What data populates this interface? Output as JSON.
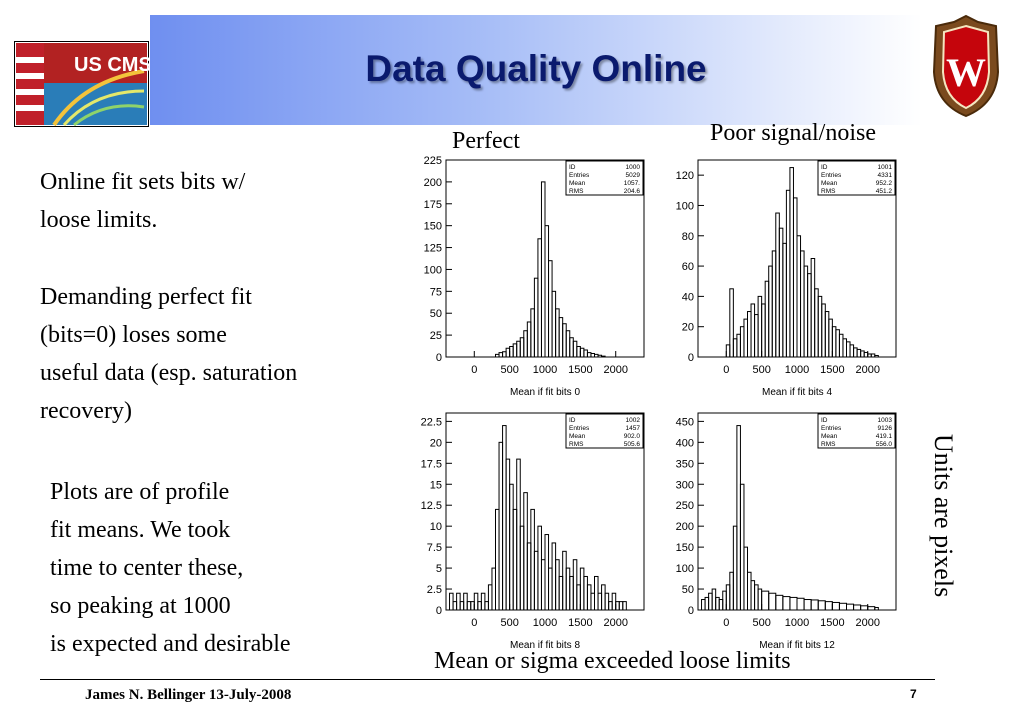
{
  "slide": {
    "title": "Data Quality Online",
    "page_number": "7",
    "footer": "James N. Bellinger 13-July-2008",
    "logo_left_text": "US CMS",
    "logo_right_letter": "W"
  },
  "labels": {
    "perfect": "Perfect",
    "poor": "Poor signal/noise",
    "exceeded": "Mean or sigma exceeded loose limits",
    "units": "Units are pixels"
  },
  "text_blocks": [
    {
      "lines": [
        "Online fit sets bits w/",
        "loose limits."
      ]
    },
    {
      "lines": [
        "Demanding perfect fit",
        "(bits=0) loses some",
        "useful data (esp. saturation",
        "recovery)"
      ]
    },
    {
      "lines": [
        "Plots are of profile",
        "fit means.  We took",
        "time to center these,",
        "so peaking at 1000",
        "is expected and desirable"
      ]
    }
  ],
  "chart_data": [
    {
      "type": "bar",
      "xlabel": "Mean if fit bits 0",
      "xlim": [
        -400,
        2400
      ],
      "ylim": [
        0,
        225
      ],
      "yticks": [
        "0",
        "25",
        "50",
        "75",
        "100",
        "125",
        "150",
        "175",
        "200",
        "225"
      ],
      "xticks": [
        "0",
        "500",
        "1000",
        "1500",
        "2000"
      ],
      "stats": {
        "ID": "1000",
        "Entries": "5029",
        "Mean": "1057.",
        "RMS": "204.6"
      },
      "x": [
        300,
        350,
        400,
        450,
        500,
        550,
        600,
        650,
        700,
        750,
        800,
        850,
        900,
        950,
        1000,
        1050,
        1100,
        1150,
        1200,
        1250,
        1300,
        1350,
        1400,
        1450,
        1500,
        1550,
        1600,
        1650,
        1700,
        1750,
        1800
      ],
      "values": [
        3,
        5,
        6,
        10,
        12,
        15,
        18,
        22,
        30,
        40,
        55,
        90,
        135,
        200,
        150,
        110,
        75,
        55,
        45,
        38,
        30,
        22,
        18,
        12,
        10,
        8,
        5,
        4,
        3,
        2,
        1
      ]
    },
    {
      "type": "bar",
      "xlabel": "Mean if fit bits 4",
      "xlim": [
        -400,
        2400
      ],
      "ylim": [
        0,
        130
      ],
      "yticks": [
        "0",
        "20",
        "40",
        "60",
        "80",
        "100",
        "120"
      ],
      "xticks": [
        "0",
        "500",
        "1000",
        "1500",
        "2000"
      ],
      "stats": {
        "ID": "1001",
        "Entries": "4331",
        "Mean": "952.2",
        "RMS": "451.2"
      },
      "x": [
        0,
        50,
        100,
        150,
        200,
        250,
        300,
        350,
        400,
        450,
        500,
        550,
        600,
        650,
        700,
        750,
        800,
        850,
        900,
        950,
        1000,
        1050,
        1100,
        1150,
        1200,
        1250,
        1300,
        1350,
        1400,
        1450,
        1500,
        1550,
        1600,
        1650,
        1700,
        1750,
        1800,
        1850,
        1900,
        1950,
        2000,
        2050,
        2100
      ],
      "values": [
        8,
        45,
        12,
        15,
        20,
        25,
        30,
        35,
        28,
        40,
        35,
        50,
        60,
        70,
        95,
        85,
        75,
        110,
        125,
        105,
        80,
        70,
        60,
        55,
        65,
        45,
        40,
        35,
        30,
        25,
        20,
        18,
        15,
        12,
        10,
        8,
        6,
        5,
        4,
        3,
        2,
        2,
        1
      ]
    },
    {
      "type": "bar",
      "xlabel": "Mean if fit bits 8",
      "xlim": [
        -400,
        2400
      ],
      "ylim": [
        0,
        23.5
      ],
      "yticks": [
        "0",
        "2.5",
        "5",
        "7.5",
        "10",
        "12.5",
        "15",
        "17.5",
        "20",
        "22.5"
      ],
      "xticks": [
        "0",
        "500",
        "1000",
        "1500",
        "2000"
      ],
      "stats": {
        "ID": "1002",
        "Entries": "1457",
        "Mean": "902.0",
        "RMS": "505.6"
      },
      "x": [
        -350,
        -300,
        -250,
        -200,
        -150,
        -100,
        -50,
        0,
        50,
        100,
        150,
        200,
        250,
        300,
        350,
        400,
        450,
        500,
        550,
        600,
        650,
        700,
        750,
        800,
        850,
        900,
        950,
        1000,
        1050,
        1100,
        1150,
        1200,
        1250,
        1300,
        1350,
        1400,
        1450,
        1500,
        1550,
        1600,
        1650,
        1700,
        1750,
        1800,
        1850,
        1900,
        1950,
        2000,
        2050,
        2100
      ],
      "values": [
        2,
        1,
        2,
        1,
        2,
        1,
        1,
        2,
        1,
        2,
        1,
        3,
        5,
        12,
        20,
        22,
        18,
        15,
        12,
        18,
        10,
        14,
        8,
        12,
        7,
        10,
        6,
        9,
        5,
        8,
        6,
        4,
        7,
        5,
        4,
        6,
        3,
        5,
        4,
        3,
        2,
        4,
        2,
        3,
        2,
        1,
        2,
        1,
        1,
        1
      ]
    },
    {
      "type": "bar",
      "xlabel": "Mean if fit bits 12",
      "xlim": [
        -400,
        2400
      ],
      "ylim": [
        0,
        470
      ],
      "yticks": [
        "0",
        "50",
        "100",
        "150",
        "200",
        "250",
        "300",
        "350",
        "400",
        "450"
      ],
      "xticks": [
        "0",
        "500",
        "1000",
        "1500",
        "2000"
      ],
      "stats": {
        "ID": "1003",
        "Entries": "9126",
        "Mean": "419.1",
        "RMS": "556.0"
      },
      "x": [
        -350,
        -300,
        -250,
        -200,
        -150,
        -100,
        -50,
        0,
        50,
        100,
        150,
        200,
        250,
        300,
        350,
        400,
        450,
        500,
        600,
        700,
        800,
        900,
        1000,
        1100,
        1200,
        1300,
        1400,
        1500,
        1600,
        1700,
        1800,
        1900,
        2000,
        2100
      ],
      "values": [
        25,
        30,
        40,
        50,
        30,
        25,
        45,
        60,
        90,
        200,
        440,
        300,
        150,
        90,
        70,
        60,
        50,
        45,
        40,
        35,
        32,
        30,
        28,
        25,
        24,
        22,
        20,
        18,
        16,
        14,
        12,
        10,
        8,
        6
      ]
    }
  ]
}
